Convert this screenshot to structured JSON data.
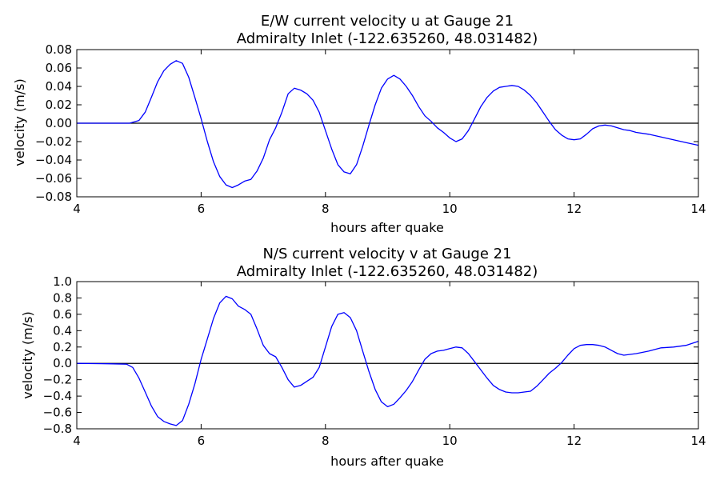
{
  "chart_data": [
    {
      "type": "line",
      "title_line1": "E/W current velocity u at Gauge 21",
      "title_line2": "Admiralty Inlet  (-122.635260, 48.031482)",
      "xlabel": "hours after quake",
      "ylabel": "velocity (m/s)",
      "xlim": [
        4,
        14
      ],
      "ylim": [
        -0.08,
        0.08
      ],
      "xticks": [
        4,
        6,
        8,
        10,
        12,
        14
      ],
      "xtick_labels": [
        "4",
        "6",
        "8",
        "10",
        "12",
        "14"
      ],
      "yticks": [
        -0.08,
        -0.06,
        -0.04,
        -0.02,
        0.0,
        0.02,
        0.04,
        0.06,
        0.08
      ],
      "ytick_labels": [
        "−0.08",
        "−0.06",
        "−0.04",
        "−0.02",
        "0.00",
        "0.02",
        "0.04",
        "0.06",
        "0.08"
      ],
      "zero_line": true,
      "grid": false,
      "color": "#0000ff",
      "series": [
        {
          "x": [
            4.0,
            4.5,
            4.85,
            5.0,
            5.1,
            5.2,
            5.3,
            5.4,
            5.5,
            5.6,
            5.7,
            5.8,
            5.9,
            6.0,
            6.1,
            6.2,
            6.3,
            6.4,
            6.5,
            6.6,
            6.7,
            6.8,
            6.9,
            7.0,
            7.1,
            7.2,
            7.3,
            7.4,
            7.5,
            7.6,
            7.7,
            7.8,
            7.9,
            8.0,
            8.1,
            8.2,
            8.3,
            8.4,
            8.5,
            8.6,
            8.7,
            8.8,
            8.9,
            9.0,
            9.1,
            9.2,
            9.3,
            9.4,
            9.5,
            9.6,
            9.7,
            9.8,
            9.9,
            10.0,
            10.1,
            10.2,
            10.3,
            10.4,
            10.5,
            10.6,
            10.7,
            10.8,
            10.9,
            11.0,
            11.1,
            11.2,
            11.3,
            11.4,
            11.5,
            11.6,
            11.7,
            11.8,
            11.9,
            12.0,
            12.1,
            12.2,
            12.3,
            12.4,
            12.5,
            12.6,
            12.7,
            12.8,
            12.9,
            13.0,
            13.2,
            13.4,
            13.6,
            13.8,
            14.0
          ],
          "y": [
            0.0,
            0.0,
            0.0,
            0.003,
            0.012,
            0.028,
            0.045,
            0.057,
            0.064,
            0.068,
            0.065,
            0.05,
            0.028,
            0.005,
            -0.02,
            -0.042,
            -0.058,
            -0.067,
            -0.07,
            -0.067,
            -0.063,
            -0.061,
            -0.052,
            -0.038,
            -0.018,
            -0.005,
            0.012,
            0.032,
            0.038,
            0.036,
            0.032,
            0.025,
            0.012,
            -0.008,
            -0.028,
            -0.045,
            -0.053,
            -0.055,
            -0.045,
            -0.025,
            -0.002,
            0.02,
            0.038,
            0.048,
            0.052,
            0.048,
            0.04,
            0.03,
            0.018,
            0.008,
            0.002,
            -0.005,
            -0.01,
            -0.016,
            -0.02,
            -0.017,
            -0.008,
            0.005,
            0.018,
            0.028,
            0.035,
            0.039,
            0.04,
            0.041,
            0.04,
            0.036,
            0.03,
            0.022,
            0.012,
            0.002,
            -0.007,
            -0.013,
            -0.017,
            -0.018,
            -0.017,
            -0.012,
            -0.006,
            -0.003,
            -0.002,
            -0.003,
            -0.005,
            -0.007,
            -0.008,
            -0.01,
            -0.012,
            -0.015,
            -0.018,
            -0.021,
            -0.024
          ]
        }
      ]
    },
    {
      "type": "line",
      "title_line1": "N/S current velocity v at Gauge 21",
      "title_line2": "Admiralty Inlet  (-122.635260, 48.031482)",
      "xlabel": "hours after quake",
      "ylabel": "velocity (m/s)",
      "xlim": [
        4,
        14
      ],
      "ylim": [
        -0.8,
        1.0
      ],
      "xticks": [
        4,
        6,
        8,
        10,
        12,
        14
      ],
      "xtick_labels": [
        "4",
        "6",
        "8",
        "10",
        "12",
        "14"
      ],
      "yticks": [
        -0.8,
        -0.6,
        -0.4,
        -0.2,
        0.0,
        0.2,
        0.4,
        0.6,
        0.8,
        1.0
      ],
      "ytick_labels": [
        "−0.8",
        "−0.6",
        "−0.4",
        "−0.2",
        "0.0",
        "0.2",
        "0.4",
        "0.6",
        "0.8",
        "1.0"
      ],
      "zero_line": true,
      "grid": false,
      "color": "#0000ff",
      "series": [
        {
          "x": [
            4.0,
            4.5,
            4.8,
            4.9,
            5.0,
            5.1,
            5.2,
            5.3,
            5.4,
            5.5,
            5.6,
            5.7,
            5.8,
            5.9,
            6.0,
            6.1,
            6.2,
            6.3,
            6.4,
            6.5,
            6.6,
            6.7,
            6.8,
            6.9,
            7.0,
            7.1,
            7.2,
            7.3,
            7.4,
            7.5,
            7.6,
            7.7,
            7.8,
            7.9,
            8.0,
            8.1,
            8.2,
            8.3,
            8.4,
            8.5,
            8.6,
            8.7,
            8.8,
            8.9,
            9.0,
            9.1,
            9.2,
            9.3,
            9.4,
            9.5,
            9.6,
            9.7,
            9.8,
            9.9,
            10.0,
            10.1,
            10.2,
            10.3,
            10.4,
            10.5,
            10.6,
            10.7,
            10.8,
            10.9,
            11.0,
            11.1,
            11.2,
            11.3,
            11.4,
            11.5,
            11.6,
            11.7,
            11.8,
            11.9,
            12.0,
            12.1,
            12.2,
            12.3,
            12.4,
            12.5,
            12.6,
            12.7,
            12.8,
            13.0,
            13.2,
            13.4,
            13.6,
            13.8,
            14.0
          ],
          "y": [
            0.0,
            -0.005,
            -0.01,
            -0.05,
            -0.18,
            -0.35,
            -0.52,
            -0.65,
            -0.71,
            -0.74,
            -0.76,
            -0.7,
            -0.5,
            -0.25,
            0.05,
            0.3,
            0.55,
            0.74,
            0.82,
            0.79,
            0.7,
            0.66,
            0.6,
            0.42,
            0.22,
            0.12,
            0.08,
            -0.05,
            -0.2,
            -0.29,
            -0.27,
            -0.22,
            -0.17,
            -0.05,
            0.2,
            0.45,
            0.6,
            0.62,
            0.56,
            0.4,
            0.15,
            -0.1,
            -0.32,
            -0.47,
            -0.53,
            -0.5,
            -0.42,
            -0.33,
            -0.22,
            -0.08,
            0.05,
            0.12,
            0.15,
            0.16,
            0.18,
            0.2,
            0.19,
            0.12,
            0.02,
            -0.08,
            -0.18,
            -0.27,
            -0.32,
            -0.35,
            -0.36,
            -0.36,
            -0.35,
            -0.34,
            -0.28,
            -0.2,
            -0.12,
            -0.06,
            0.01,
            0.1,
            0.18,
            0.22,
            0.23,
            0.23,
            0.22,
            0.2,
            0.16,
            0.12,
            0.1,
            0.12,
            0.15,
            0.19,
            0.2,
            0.22,
            0.27
          ]
        }
      ]
    }
  ]
}
